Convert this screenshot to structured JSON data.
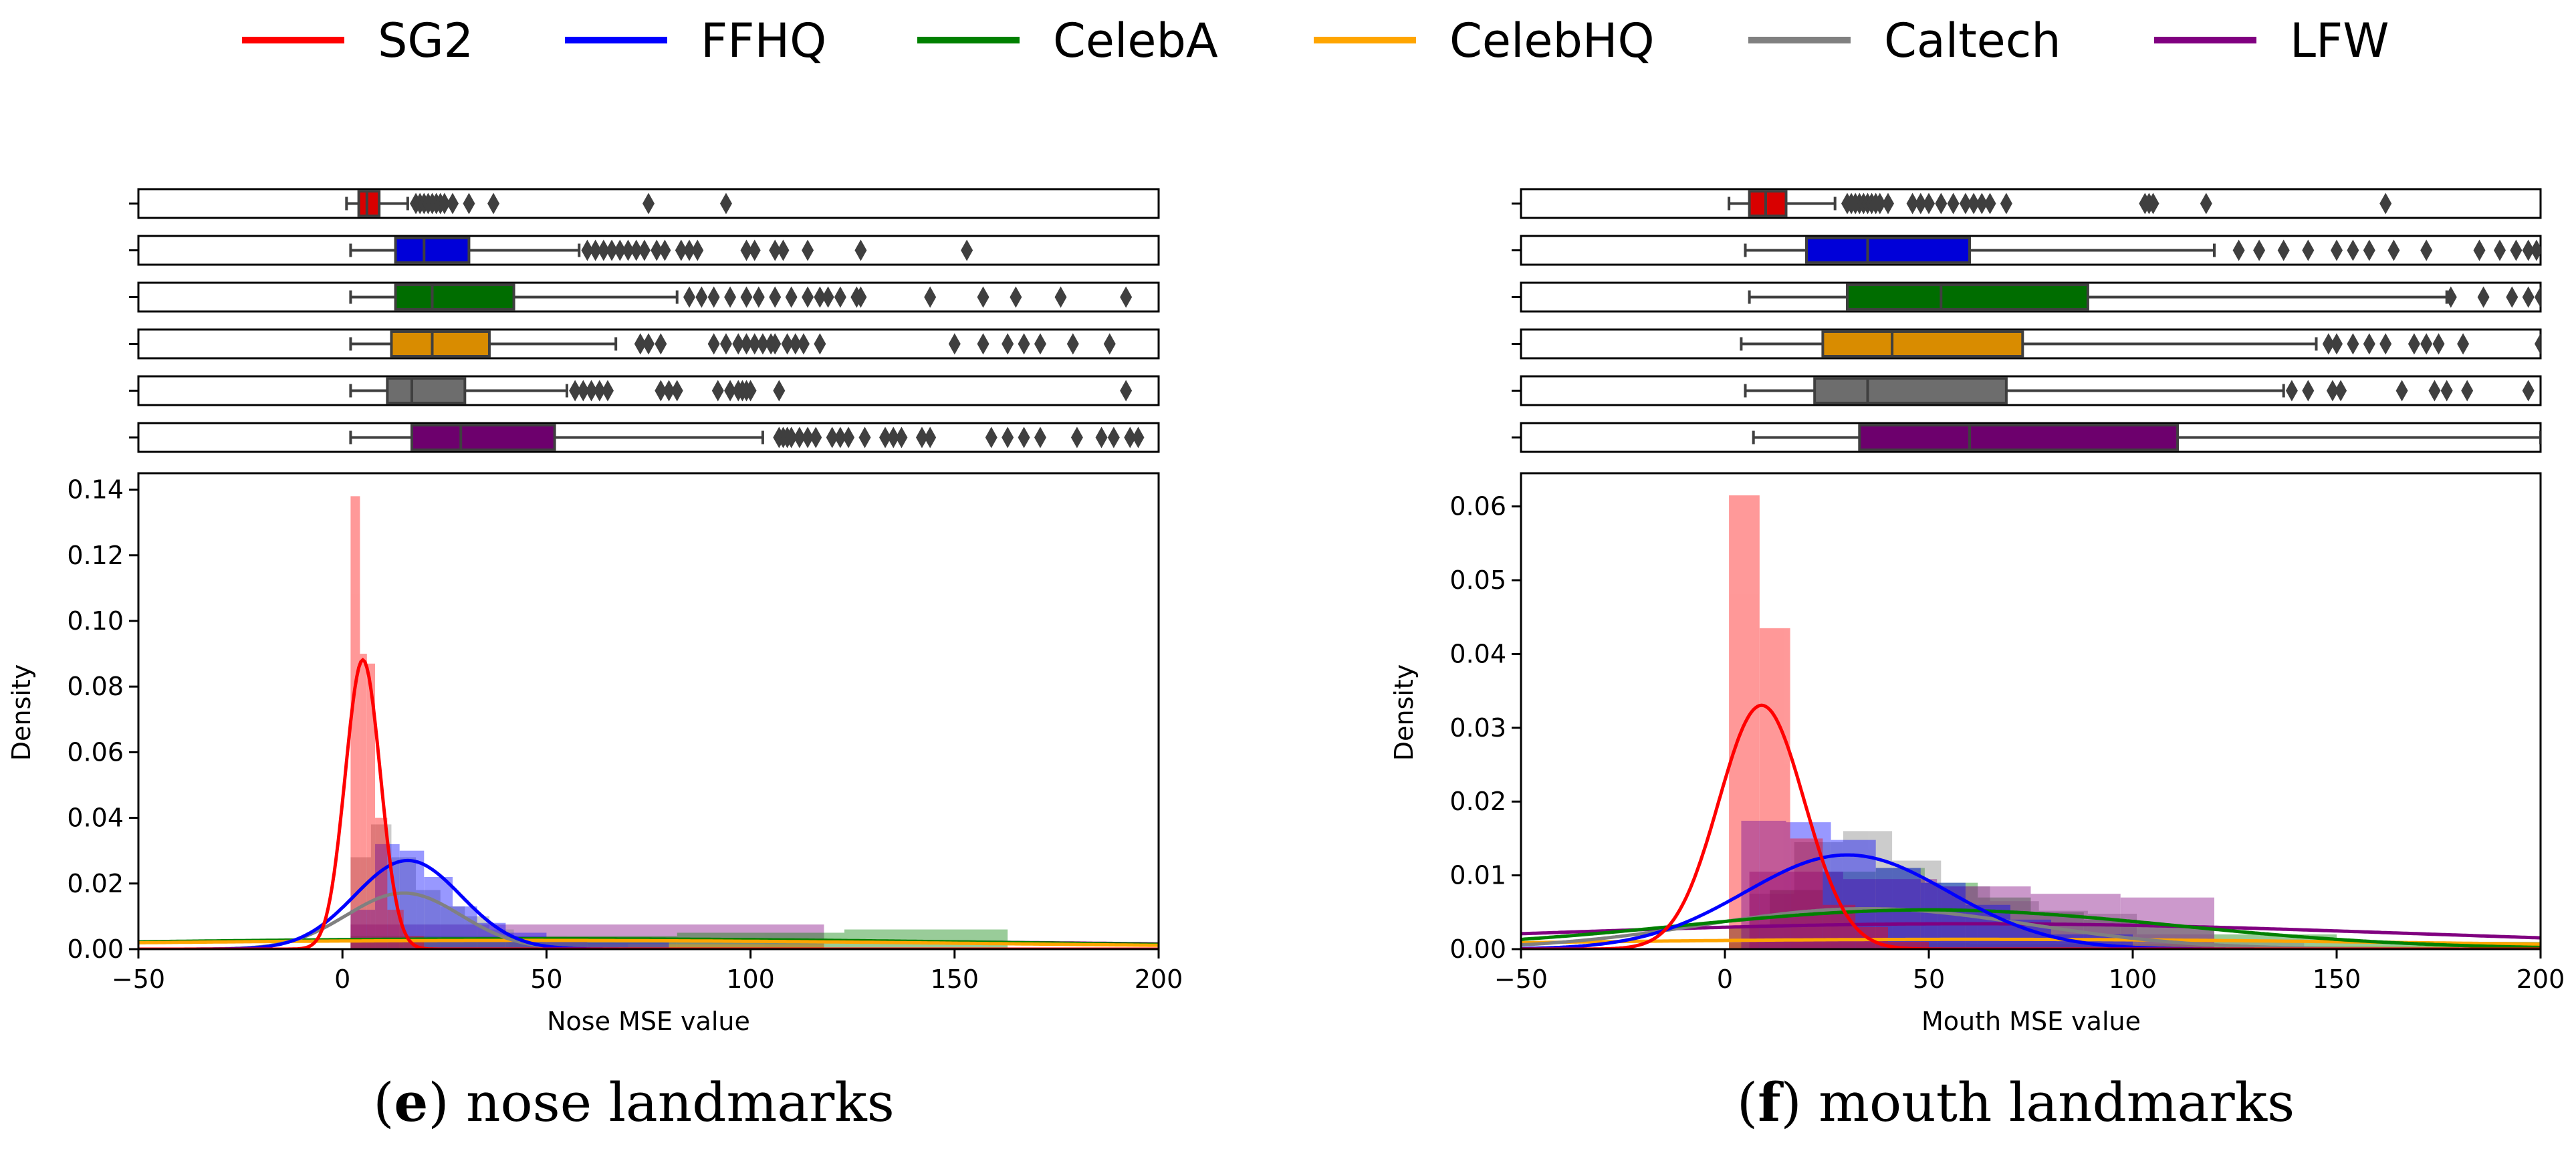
{
  "legend": [
    {
      "name": "SG2",
      "color": "#ff0000"
    },
    {
      "name": "FFHQ",
      "color": "#0000ff"
    },
    {
      "name": "CelebA",
      "color": "#008000"
    },
    {
      "name": "CelebHQ",
      "color": "#ffa500"
    },
    {
      "name": "Caltech",
      "color": "#808080"
    },
    {
      "name": "LFW",
      "color": "#800080"
    }
  ],
  "chart_data": [
    {
      "type": "histogram-kde-boxplot",
      "caption": {
        "open": "(",
        "letter": "e",
        "close": ") nose landmarks"
      },
      "xlabel": "Nose MSE value",
      "ylabel": "Density",
      "xlim": [
        -50,
        200
      ],
      "ylim": [
        0,
        0.145
      ],
      "xticks": [
        -50,
        0,
        50,
        100,
        150,
        200
      ],
      "xtick_labels": [
        "−50",
        "0",
        "50",
        "100",
        "150",
        "200"
      ],
      "yticks": [
        0,
        0.02,
        0.04,
        0.06,
        0.08,
        0.1,
        0.12,
        0.14
      ],
      "ytick_labels": [
        "0.00",
        "0.02",
        "0.04",
        "0.06",
        "0.08",
        "0.10",
        "0.12",
        "0.14"
      ],
      "boxplots": [
        {
          "name": "SG2",
          "wl": 1,
          "q1": 4,
          "med": 6,
          "q3": 9,
          "wh": 16,
          "outliers": [
            18,
            19,
            20,
            21,
            22,
            23,
            24,
            25,
            27,
            31,
            37,
            75,
            94
          ]
        },
        {
          "name": "FFHQ",
          "wl": 2,
          "q1": 13,
          "med": 20,
          "q3": 31,
          "wh": 58,
          "outliers": [
            60,
            62,
            64,
            66,
            68,
            70,
            72,
            74,
            77,
            79,
            83,
            85,
            87,
            99,
            101,
            106,
            108,
            114,
            127,
            153
          ]
        },
        {
          "name": "CelebA",
          "wl": 2,
          "q1": 13,
          "med": 22,
          "q3": 42,
          "wh": 82,
          "outliers": [
            85,
            88,
            91,
            95,
            99,
            102,
            106,
            110,
            114,
            117,
            119,
            122,
            126,
            127,
            144,
            157,
            165,
            176,
            192
          ]
        },
        {
          "name": "CelebHQ",
          "wl": 2,
          "q1": 12,
          "med": 22,
          "q3": 36,
          "wh": 67,
          "outliers": [
            73,
            75,
            78,
            91,
            94,
            97,
            99,
            101,
            103,
            105,
            106,
            109,
            111,
            113,
            117,
            150,
            157,
            163,
            167,
            171,
            179,
            188
          ]
        },
        {
          "name": "Caltech",
          "wl": 2,
          "q1": 11,
          "med": 17,
          "q3": 30,
          "wh": 55,
          "outliers": [
            57,
            59,
            61,
            63,
            65,
            78,
            80,
            82,
            92,
            95,
            97,
            98,
            99,
            100,
            107,
            192
          ]
        },
        {
          "name": "LFW",
          "wl": 2,
          "q1": 17,
          "med": 29,
          "q3": 52,
          "wh": 103,
          "outliers": [
            107,
            108,
            109,
            110,
            112,
            114,
            116,
            120,
            122,
            124,
            128,
            133,
            135,
            137,
            142,
            144,
            159,
            163,
            167,
            171,
            180,
            186,
            189,
            193,
            195
          ]
        }
      ],
      "histograms": [
        {
          "name": "LFW",
          "opacity": 0.4,
          "bins": [
            [
              2,
              118,
              0.0075
            ]
          ]
        },
        {
          "name": "CelebA",
          "opacity": 0.4,
          "bins": [
            [
              2,
              42,
              0.004
            ],
            [
              42,
              82,
              0.004
            ],
            [
              82,
              123,
              0.005
            ],
            [
              123,
              163,
              0.006
            ]
          ]
        },
        {
          "name": "CelebHQ",
          "opacity": 0.4,
          "bins": [
            [
              2,
              60,
              0.002
            ],
            [
              60,
              118,
              0.0015
            ]
          ]
        },
        {
          "name": "Caltech",
          "opacity": 0.4,
          "bins": [
            [
              2,
              7,
              0.028
            ],
            [
              7,
              12,
              0.038
            ],
            [
              12,
              18,
              0.028
            ],
            [
              18,
              24,
              0.018
            ],
            [
              24,
              30,
              0.013
            ],
            [
              30,
              36,
              0.01
            ],
            [
              36,
              42,
              0.006
            ],
            [
              42,
              55,
              0.004
            ],
            [
              55,
              70,
              0.002
            ]
          ]
        },
        {
          "name": "FFHQ",
          "opacity": 0.4,
          "bins": [
            [
              2,
              8,
              0.012
            ],
            [
              8,
              14,
              0.032
            ],
            [
              14,
              20,
              0.03
            ],
            [
              20,
              27,
              0.022
            ],
            [
              27,
              33,
              0.013
            ],
            [
              33,
              40,
              0.008
            ],
            [
              40,
              50,
              0.005
            ],
            [
              50,
              60,
              0.003
            ],
            [
              60,
              80,
              0.002
            ]
          ]
        },
        {
          "name": "SG2",
          "opacity": 0.4,
          "bins": [
            [
              2,
              4.3,
              0.138
            ],
            [
              4.3,
              6,
              0.09
            ],
            [
              6,
              8,
              0.087
            ],
            [
              8,
              11,
              0.04
            ],
            [
              11,
              15,
              0.012
            ],
            [
              15,
              20,
              0.004
            ]
          ]
        }
      ],
      "kde": [
        {
          "name": "LFW",
          "mu": 50,
          "sigma": 140,
          "w": 1.0
        },
        {
          "name": "CelebA",
          "mu": 50,
          "sigma": 120,
          "w": 0.95
        },
        {
          "name": "CelebHQ",
          "mu": 45,
          "sigma": 120,
          "w": 0.8
        },
        {
          "name": "Caltech",
          "mu": 15,
          "sigma": 14,
          "w": 0.6
        },
        {
          "name": "FFHQ",
          "mu": 16,
          "sigma": 13,
          "w": 0.88
        },
        {
          "name": "SG2",
          "mu": 5,
          "sigma": 4.3,
          "w": 0.95
        }
      ]
    },
    {
      "type": "histogram-kde-boxplot",
      "caption": {
        "open": "(",
        "letter": "f",
        "close": ") mouth landmarks"
      },
      "xlabel": "Mouth MSE value",
      "ylabel": "Density",
      "xlim": [
        -50,
        200
      ],
      "ylim": [
        0,
        0.0645
      ],
      "xticks": [
        -50,
        0,
        50,
        100,
        150,
        200
      ],
      "xtick_labels": [
        "−50",
        "0",
        "50",
        "100",
        "150",
        "200"
      ],
      "yticks": [
        0,
        0.01,
        0.02,
        0.03,
        0.04,
        0.05,
        0.06
      ],
      "ytick_labels": [
        "0.00",
        "0.01",
        "0.02",
        "0.03",
        "0.04",
        "0.05",
        "0.06"
      ],
      "boxplots": [
        {
          "name": "SG2",
          "wl": 1,
          "q1": 6,
          "med": 10,
          "q3": 15,
          "wh": 27,
          "outliers": [
            30,
            31,
            32,
            33,
            34,
            35,
            36,
            37,
            38,
            40,
            46,
            48,
            50,
            53,
            56,
            59,
            61,
            63,
            65,
            69,
            103,
            104,
            105,
            118,
            162
          ]
        },
        {
          "name": "FFHQ",
          "wl": 5,
          "q1": 20,
          "med": 35,
          "q3": 60,
          "wh": 120,
          "outliers": [
            126,
            131,
            137,
            143,
            150,
            154,
            158,
            164,
            172,
            185,
            190,
            194,
            197,
            199
          ]
        },
        {
          "name": "CelebA",
          "wl": 6,
          "q1": 30,
          "med": 53,
          "q3": 89,
          "wh": 177,
          "outliers": [
            178,
            186,
            193,
            197,
            200
          ]
        },
        {
          "name": "CelebHQ",
          "wl": 4,
          "q1": 24,
          "med": 41,
          "q3": 73,
          "wh": 145,
          "outliers": [
            148,
            150,
            154,
            158,
            162,
            169,
            172,
            175,
            181,
            200
          ]
        },
        {
          "name": "Caltech",
          "wl": 5,
          "q1": 22,
          "med": 35,
          "q3": 69,
          "wh": 137,
          "outliers": [
            139,
            143,
            149,
            151,
            166,
            174,
            177,
            182,
            197
          ]
        },
        {
          "name": "LFW",
          "wl": 7,
          "q1": 33,
          "med": 60,
          "q3": 111,
          "wh": 200,
          "outliers": []
        }
      ],
      "histograms": [
        {
          "name": "CelebHQ",
          "opacity": 0.4,
          "bins": [
            [
              1,
              60,
              0.0008
            ],
            [
              60,
              120,
              0.0007
            ],
            [
              120,
              180,
              0.0004
            ]
          ]
        },
        {
          "name": "CelebA",
          "opacity": 0.4,
          "bins": [
            [
              1,
              11,
              0.003
            ],
            [
              11,
              24,
              0.008
            ],
            [
              24,
              37,
              0.0105
            ],
            [
              37,
              49,
              0.011
            ],
            [
              49,
              62,
              0.009
            ],
            [
              62,
              75,
              0.007
            ],
            [
              75,
              88,
              0.005
            ],
            [
              88,
              101,
              0.004
            ],
            [
              101,
              120,
              0.003
            ],
            [
              120,
              150,
              0.002
            ],
            [
              150,
              200,
              0.001
            ]
          ]
        },
        {
          "name": "Caltech",
          "opacity": 0.4,
          "bins": [
            [
              1,
              6,
              0.003
            ],
            [
              6,
              17,
              0.0075
            ],
            [
              17,
              29,
              0.0145
            ],
            [
              29,
              41,
              0.016
            ],
            [
              41,
              53,
              0.012
            ],
            [
              53,
              65,
              0.0085
            ],
            [
              65,
              77,
              0.0065
            ],
            [
              77,
              89,
              0.0052
            ],
            [
              89,
              101,
              0.0048
            ],
            [
              101,
              120,
              0.002
            ],
            [
              120,
              142,
              0.0013
            ]
          ]
        },
        {
          "name": "LFW",
          "opacity": 0.4,
          "bins": [
            [
              6,
              29,
              0.0105
            ],
            [
              29,
              52,
              0.0095
            ],
            [
              52,
              75,
              0.0085
            ],
            [
              75,
              97,
              0.0075
            ],
            [
              97,
              120,
              0.007
            ]
          ]
        },
        {
          "name": "FFHQ",
          "opacity": 0.4,
          "bins": [
            [
              4,
              15,
              0.0174
            ],
            [
              15,
              26,
              0.0172
            ],
            [
              26,
              37,
              0.0148
            ],
            [
              37,
              48,
              0.011
            ],
            [
              48,
              59,
              0.009
            ],
            [
              59,
              70,
              0.006
            ],
            [
              70,
              80,
              0.004
            ],
            [
              80,
              100,
              0.002
            ]
          ]
        },
        {
          "name": "SG2",
          "opacity": 0.4,
          "bins": [
            [
              1,
              8.5,
              0.0615
            ],
            [
              8.5,
              16,
              0.0435
            ],
            [
              16,
              24,
              0.015
            ],
            [
              24,
              32,
              0.006
            ],
            [
              32,
              40,
              0.003
            ],
            [
              40,
              50,
              0.001
            ]
          ]
        }
      ],
      "kde": [
        {
          "name": "CelebHQ",
          "mu": 60,
          "sigma": 120,
          "w": 0.4
        },
        {
          "name": "LFW",
          "mu": 60,
          "sigma": 110,
          "w": 0.95
        },
        {
          "name": "Caltech",
          "mu": 35,
          "sigma": 40,
          "w": 0.55
        },
        {
          "name": "CelebA",
          "mu": 50,
          "sigma": 60,
          "w": 0.8
        },
        {
          "name": "FFHQ",
          "mu": 30,
          "sigma": 25,
          "w": 0.8
        },
        {
          "name": "SG2",
          "mu": 9,
          "sigma": 10.5,
          "w": 0.87
        }
      ]
    }
  ]
}
